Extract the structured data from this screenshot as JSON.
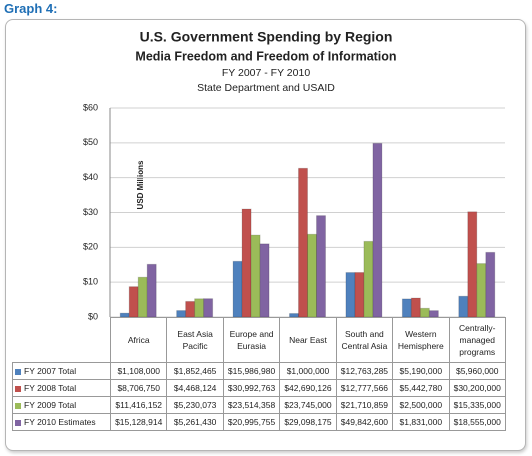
{
  "header": {
    "label": "Graph 4:"
  },
  "chart_data": {
    "type": "bar",
    "title": "U.S. Government Spending by Region",
    "subtitle": "Media Freedom and Freedom of Information",
    "subtitle2": "FY 2007 - FY 2010",
    "subtitle3": "State Department and USAID",
    "y_label": "USD Millions",
    "categories": [
      "Africa",
      "East Asia Pacific",
      "Europe and Eurasia",
      "Near East",
      "South and Central Asia",
      "Western Hemisphere",
      "Centrally-managed programs"
    ],
    "series": [
      {
        "name": "FY 2007 Total",
        "color": "#4f81bd",
        "values": [
          1.108,
          1.852465,
          15.98698,
          1.0,
          12.763285,
          5.19,
          5.96
        ],
        "value_labels": [
          "$1,108,000",
          "$1,852,465",
          "$15,986,980",
          "$1,000,000",
          "$12,763,285",
          "$5,190,000",
          "$5,960,000"
        ]
      },
      {
        "name": "FY 2008 Total",
        "color": "#c0504d",
        "values": [
          8.70675,
          4.468124,
          30.992763,
          42.690126,
          12.777566,
          5.44278,
          30.2
        ],
        "value_labels": [
          "$8,706,750",
          "$4,468,124",
          "$30,992,763",
          "$42,690,126",
          "$12,777,566",
          "$5,442,780",
          "$30,200,000"
        ]
      },
      {
        "name": "FY 2009 Total",
        "color": "#9bbb59",
        "values": [
          11.416152,
          5.230073,
          23.514358,
          23.745,
          21.710859,
          2.5,
          15.335
        ],
        "value_labels": [
          "$11,416,152",
          "$5,230,073",
          "$23,514,358",
          "$23,745,000",
          "$21,710,859",
          "$2,500,000",
          "$15,335,000"
        ]
      },
      {
        "name": "FY 2010 Estimates",
        "color": "#8064a2",
        "values": [
          15.128914,
          5.26143,
          20.995755,
          29.098175,
          49.8426,
          1.831,
          18.555
        ],
        "value_labels": [
          "$15,128,914",
          "$5,261,430",
          "$20,995,755",
          "$29,098,175",
          "$49,842,600",
          "$1,831,000",
          "$18,555,000"
        ]
      }
    ],
    "ylim": [
      0,
      60
    ],
    "yticks": [
      {
        "value": 0,
        "label": "$0"
      },
      {
        "value": 10,
        "label": "$10"
      },
      {
        "value": 20,
        "label": "$20"
      },
      {
        "value": 30,
        "label": "$30"
      },
      {
        "value": 40,
        "label": "$40"
      },
      {
        "value": 50,
        "label": "$50"
      },
      {
        "value": 60,
        "label": "$60"
      }
    ],
    "grid": true
  }
}
